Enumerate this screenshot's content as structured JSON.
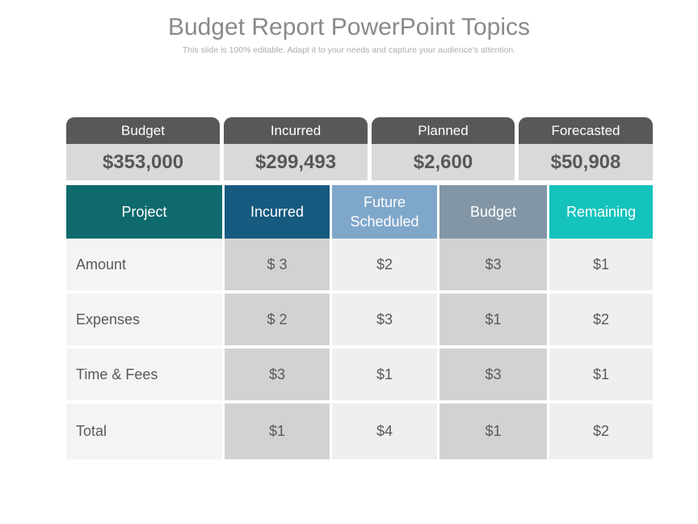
{
  "slide": {
    "title": "Budget Report PowerPoint Topics",
    "subtitle": "This slide is 100% editable. Adapt it to your needs and capture your audience's attention."
  },
  "summary_row": {
    "columns": [
      {
        "label": "Budget",
        "value": "$353,000"
      },
      {
        "label": "Incurred",
        "value": "$299,493"
      },
      {
        "label": "Planned",
        "value": "$2,600"
      },
      {
        "label": "Forecasted",
        "value": "$50,908"
      }
    ]
  },
  "detail_table": {
    "headers": [
      {
        "label": "Project",
        "color": "#0f6a6d"
      },
      {
        "label": "Incurred",
        "color": "#175a80"
      },
      {
        "label": "Future Scheduled",
        "color": "#7fa7c9"
      },
      {
        "label": "Budget",
        "color": "#8296a6"
      },
      {
        "label": "Remaining",
        "color": "#14c3bc"
      }
    ],
    "rows": [
      {
        "label": "Amount",
        "values": [
          "$ 3",
          "$2",
          "$3",
          "$1"
        ]
      },
      {
        "label": "Expenses",
        "values": [
          "$ 2",
          "$3",
          "$1",
          "$2"
        ]
      },
      {
        "label": "Time & Fees",
        "values": [
          "$3",
          "$1",
          "$3",
          "$1"
        ]
      },
      {
        "label": "Total",
        "values": [
          "$1",
          "$4",
          "$1",
          "$2"
        ]
      }
    ]
  },
  "colors": {
    "tab_bg": "#58585a",
    "summary_value_bg": "#d9d9d9",
    "row_label_bg": "#f4f4f4",
    "column_light_bg": "#efefef",
    "column_dark_bg": "#d2d2d2",
    "body_text": "#595959",
    "title_text": "#8a8a8c",
    "subtitle_text": "#acacac"
  }
}
